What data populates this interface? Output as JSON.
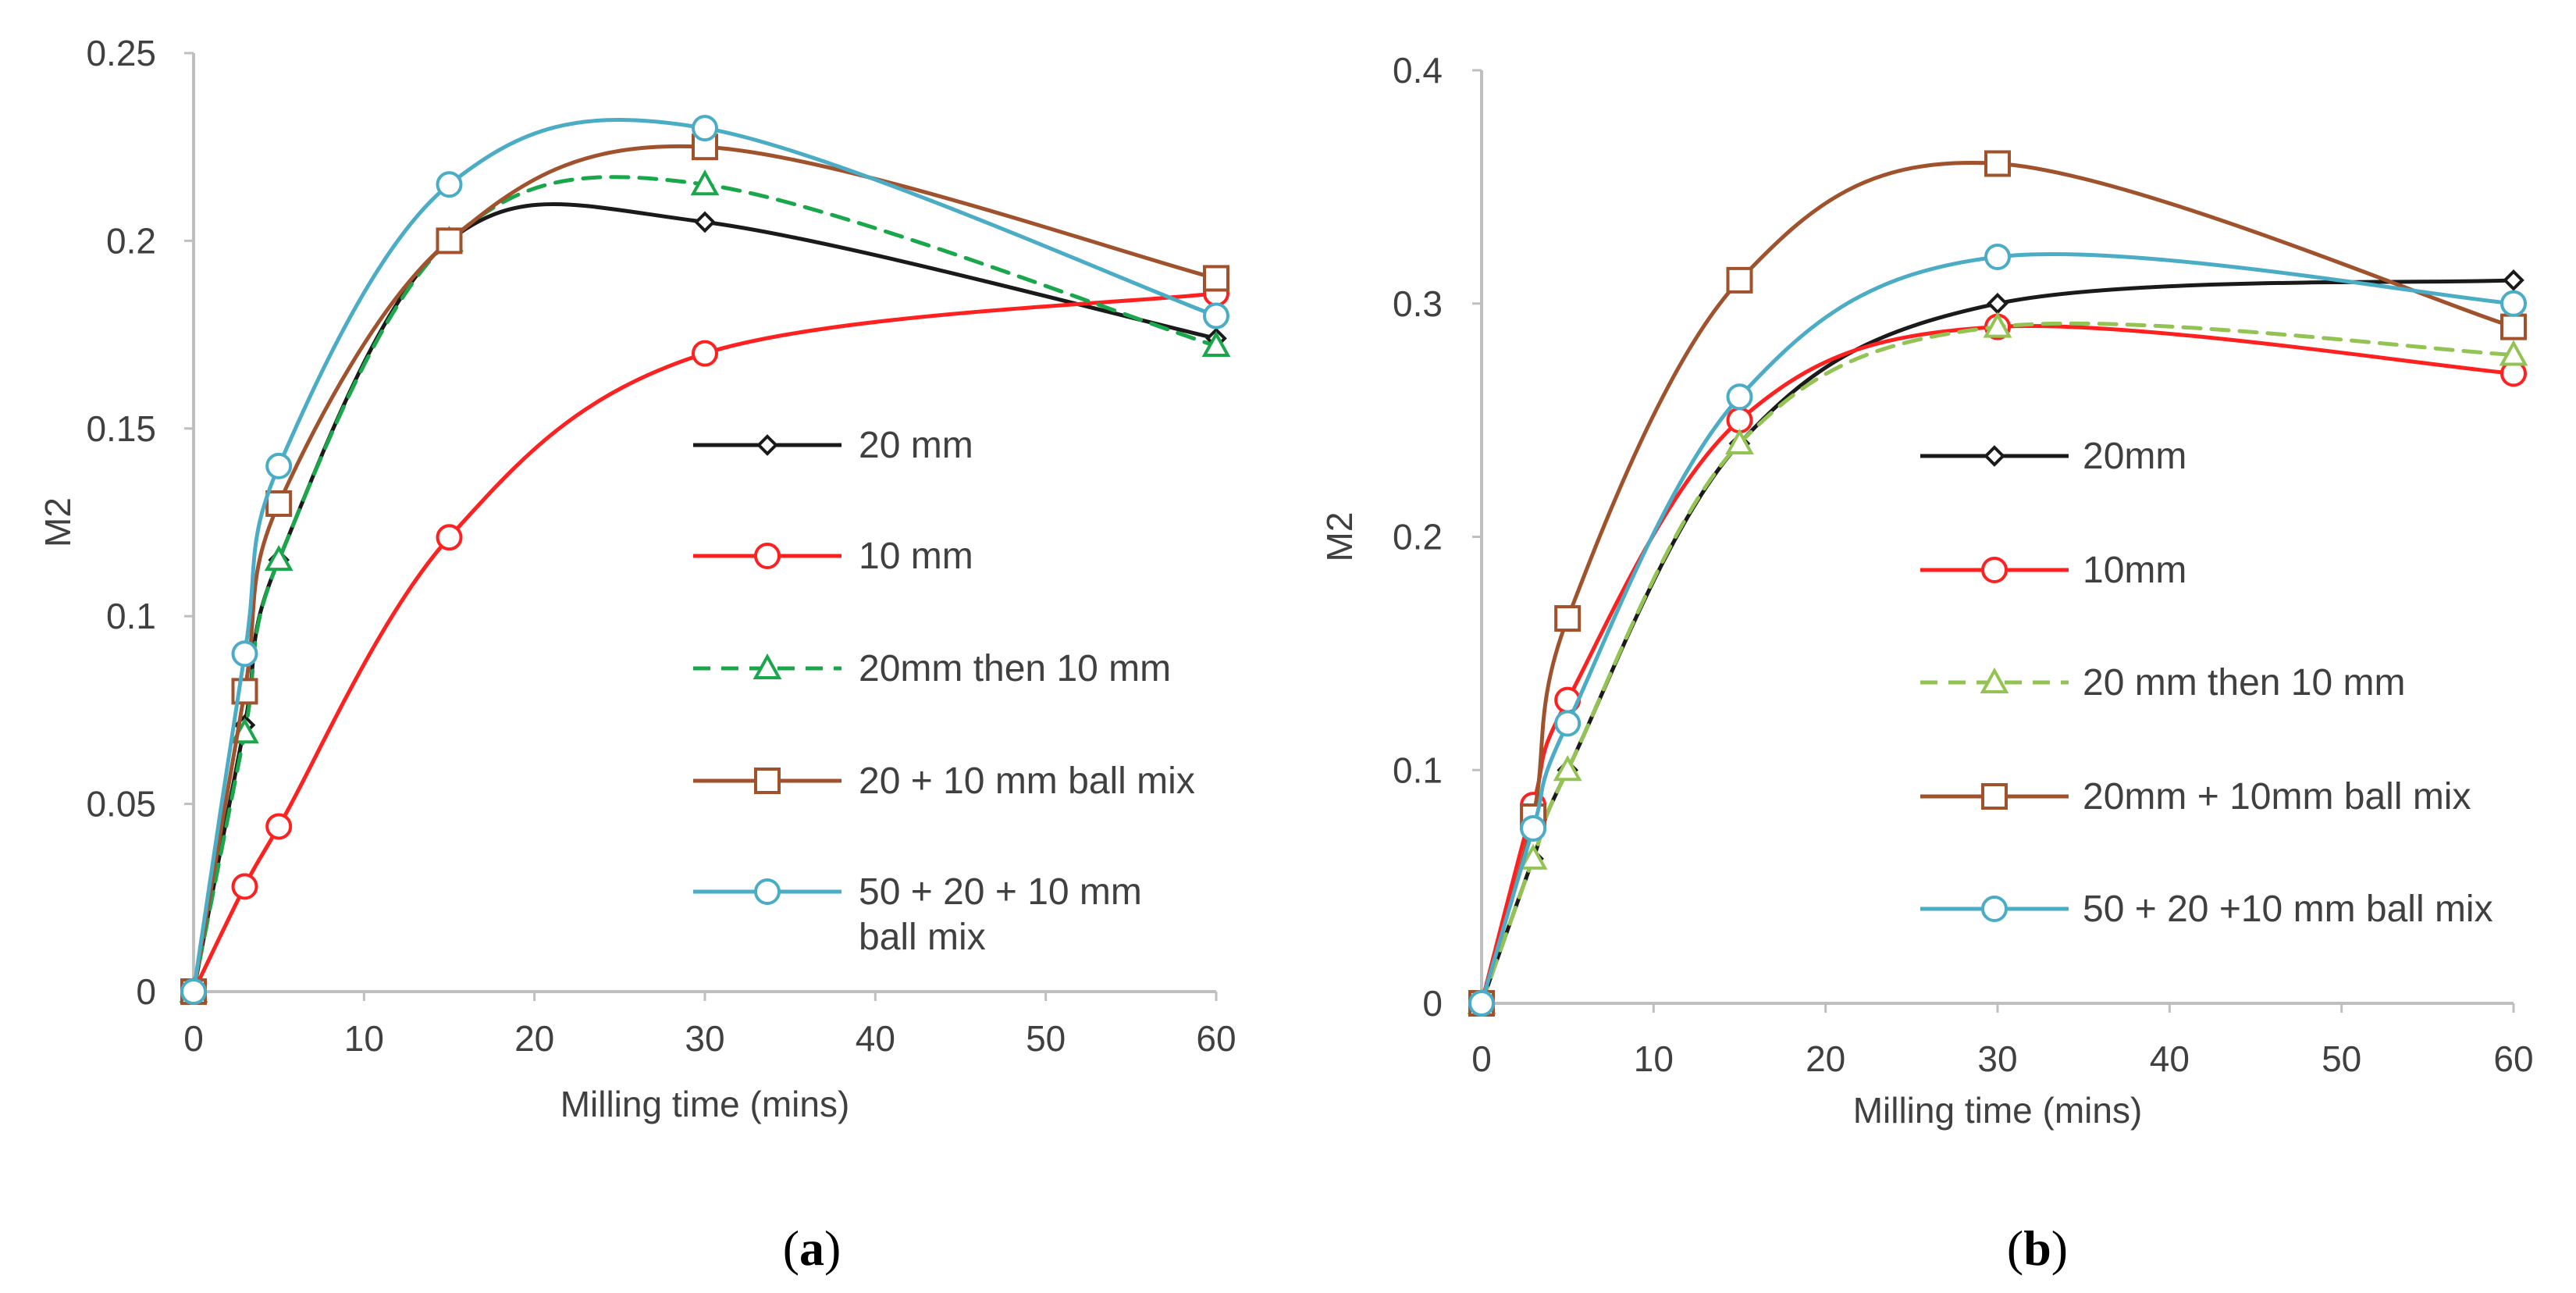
{
  "chart_data": [
    {
      "type": "line",
      "panel_label": "a",
      "xlabel": "Milling time (mins)",
      "ylabel": "M2",
      "xlim": [
        0,
        60
      ],
      "ylim": [
        0,
        0.25
      ],
      "xticks": [
        0,
        10,
        20,
        30,
        40,
        50,
        60
      ],
      "yticks": [
        0,
        0.05,
        0.1,
        0.15,
        0.2,
        0.25
      ],
      "ytick_labels": [
        "0",
        "0.05",
        "0.1",
        "0.15",
        "0.2",
        "0.25"
      ],
      "grid": false,
      "legend_position": "right",
      "series": [
        {
          "name": "20 mm",
          "color": "#1a1a1a",
          "marker": "diamond",
          "dashed": false,
          "x": [
            0,
            3,
            5,
            15,
            30,
            60
          ],
          "y": [
            0,
            0.071,
            0.115,
            0.2,
            0.205,
            0.174
          ]
        },
        {
          "name": "10 mm",
          "color": "#ff2020",
          "marker": "circle",
          "dashed": false,
          "x": [
            0,
            3,
            5,
            15,
            30,
            60
          ],
          "y": [
            0,
            0.028,
            0.044,
            0.121,
            0.17,
            0.186
          ]
        },
        {
          "name": "20mm then 10 mm",
          "color": "#1aa64a",
          "marker": "triangle",
          "dashed": true,
          "x": [
            0,
            3,
            5,
            15,
            30,
            60
          ],
          "y": [
            0,
            0.069,
            0.115,
            0.2,
            0.215,
            0.172
          ]
        },
        {
          "name": "20 + 10 mm ball mix",
          "color": "#a0522d",
          "marker": "square",
          "dashed": false,
          "x": [
            0,
            3,
            5,
            15,
            30,
            60
          ],
          "y": [
            0,
            0.08,
            0.13,
            0.2,
            0.225,
            0.19
          ]
        },
        {
          "name": "50 + 20 + 10 mm ball mix",
          "legend_lines": [
            "50 + 20 + 10 mm",
            "ball mix"
          ],
          "color": "#4bacc6",
          "marker": "circle",
          "dashed": false,
          "x": [
            0,
            3,
            5,
            15,
            30,
            60
          ],
          "y": [
            0,
            0.09,
            0.14,
            0.215,
            0.23,
            0.18
          ]
        }
      ]
    },
    {
      "type": "line",
      "panel_label": "b",
      "xlabel": "Milling time (mins)",
      "ylabel": "M2",
      "xlim": [
        0,
        60
      ],
      "ylim": [
        0,
        0.4
      ],
      "xticks": [
        0,
        10,
        20,
        30,
        40,
        50,
        60
      ],
      "yticks": [
        0,
        0.1,
        0.2,
        0.3,
        0.4
      ],
      "ytick_labels": [
        "0",
        "0.1",
        "0.2",
        "0.3",
        "0.4"
      ],
      "grid": false,
      "legend_position": "right",
      "series": [
        {
          "name": "20mm",
          "color": "#1a1a1a",
          "marker": "diamond",
          "dashed": false,
          "x": [
            0,
            3,
            5,
            15,
            30,
            60
          ],
          "y": [
            0,
            0.062,
            0.1,
            0.24,
            0.3,
            0.31
          ]
        },
        {
          "name": "10mm",
          "color": "#ff2020",
          "marker": "circle",
          "dashed": false,
          "x": [
            0,
            3,
            5,
            15,
            30,
            60
          ],
          "y": [
            0,
            0.085,
            0.13,
            0.25,
            0.29,
            0.27
          ]
        },
        {
          "name": "20 mm then 10 mm",
          "color": "#92c353",
          "marker": "triangle",
          "dashed": true,
          "x": [
            0,
            3,
            5,
            15,
            30,
            60
          ],
          "y": [
            0,
            0.062,
            0.1,
            0.24,
            0.29,
            0.278
          ]
        },
        {
          "name": "20mm + 10mm ball mix",
          "color": "#a0522d",
          "marker": "square",
          "dashed": false,
          "x": [
            0,
            3,
            5,
            15,
            30,
            60
          ],
          "y": [
            0,
            0.08,
            0.165,
            0.31,
            0.36,
            0.29
          ]
        },
        {
          "name": "50 + 20 +10 mm ball mix",
          "color": "#4bacc6",
          "marker": "circle",
          "dashed": false,
          "x": [
            0,
            3,
            5,
            15,
            30,
            60
          ],
          "y": [
            0,
            0.075,
            0.12,
            0.26,
            0.32,
            0.3
          ]
        }
      ]
    }
  ]
}
